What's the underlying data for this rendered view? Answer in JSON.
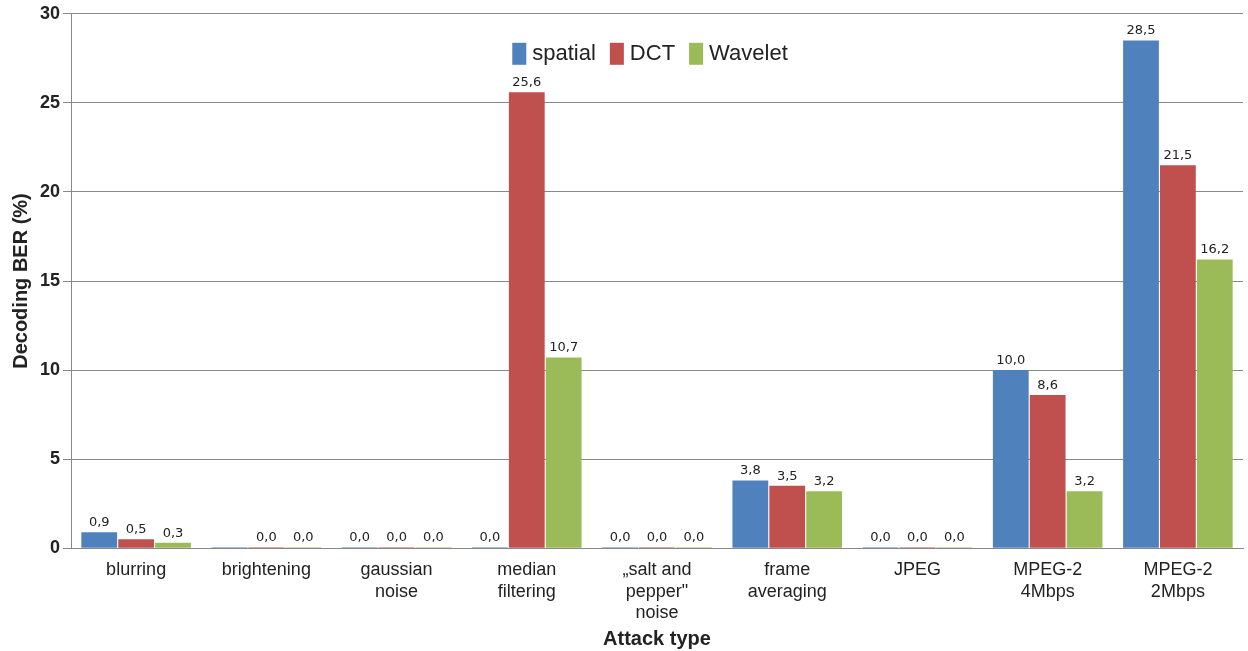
{
  "chart_data": {
    "type": "bar",
    "xlabel": "Attack type",
    "ylabel": "Decoding BER (%)",
    "categories": [
      "blurring",
      "brightening",
      "gaussian noise",
      "median filtering",
      "„salt and pepper\" noise",
      "frame averaging",
      "JPEG",
      "MPEG-2 4Mbps",
      "MPEG-2 2Mbps"
    ],
    "series": [
      {
        "name": "spatial",
        "color": "#4f81bd",
        "values": [
          0.9,
          0,
          0,
          0,
          0,
          3.8,
          0,
          10,
          28.5
        ],
        "value_labels": [
          "0,9",
          null,
          "0,0",
          "0,0",
          "0,0",
          "3,8",
          "0,0",
          "10,0",
          "28,5"
        ]
      },
      {
        "name": "DCT",
        "color": "#c0504d",
        "values": [
          0.5,
          0,
          0,
          25.6,
          0,
          3.5,
          0,
          8.6,
          21.5
        ],
        "value_labels": [
          "0,5",
          "0,0",
          "0,0",
          "25,6",
          "0,0",
          "3,5",
          "0,0",
          "8,6",
          "21,5"
        ]
      },
      {
        "name": "Wavelet",
        "color": "#9bbb59",
        "values": [
          0.3,
          0,
          0,
          10.7,
          0,
          3.2,
          0,
          3.2,
          16.2
        ],
        "value_labels": [
          "0,3",
          "0,0",
          "0,0",
          "10,7",
          "0,0",
          "3,2",
          "0,0",
          "3,2",
          "16,2"
        ]
      }
    ],
    "ylim": [
      0,
      30
    ],
    "yticks": [
      0,
      5,
      10,
      15,
      20,
      25,
      30
    ],
    "grid": "y",
    "legend": "top"
  }
}
